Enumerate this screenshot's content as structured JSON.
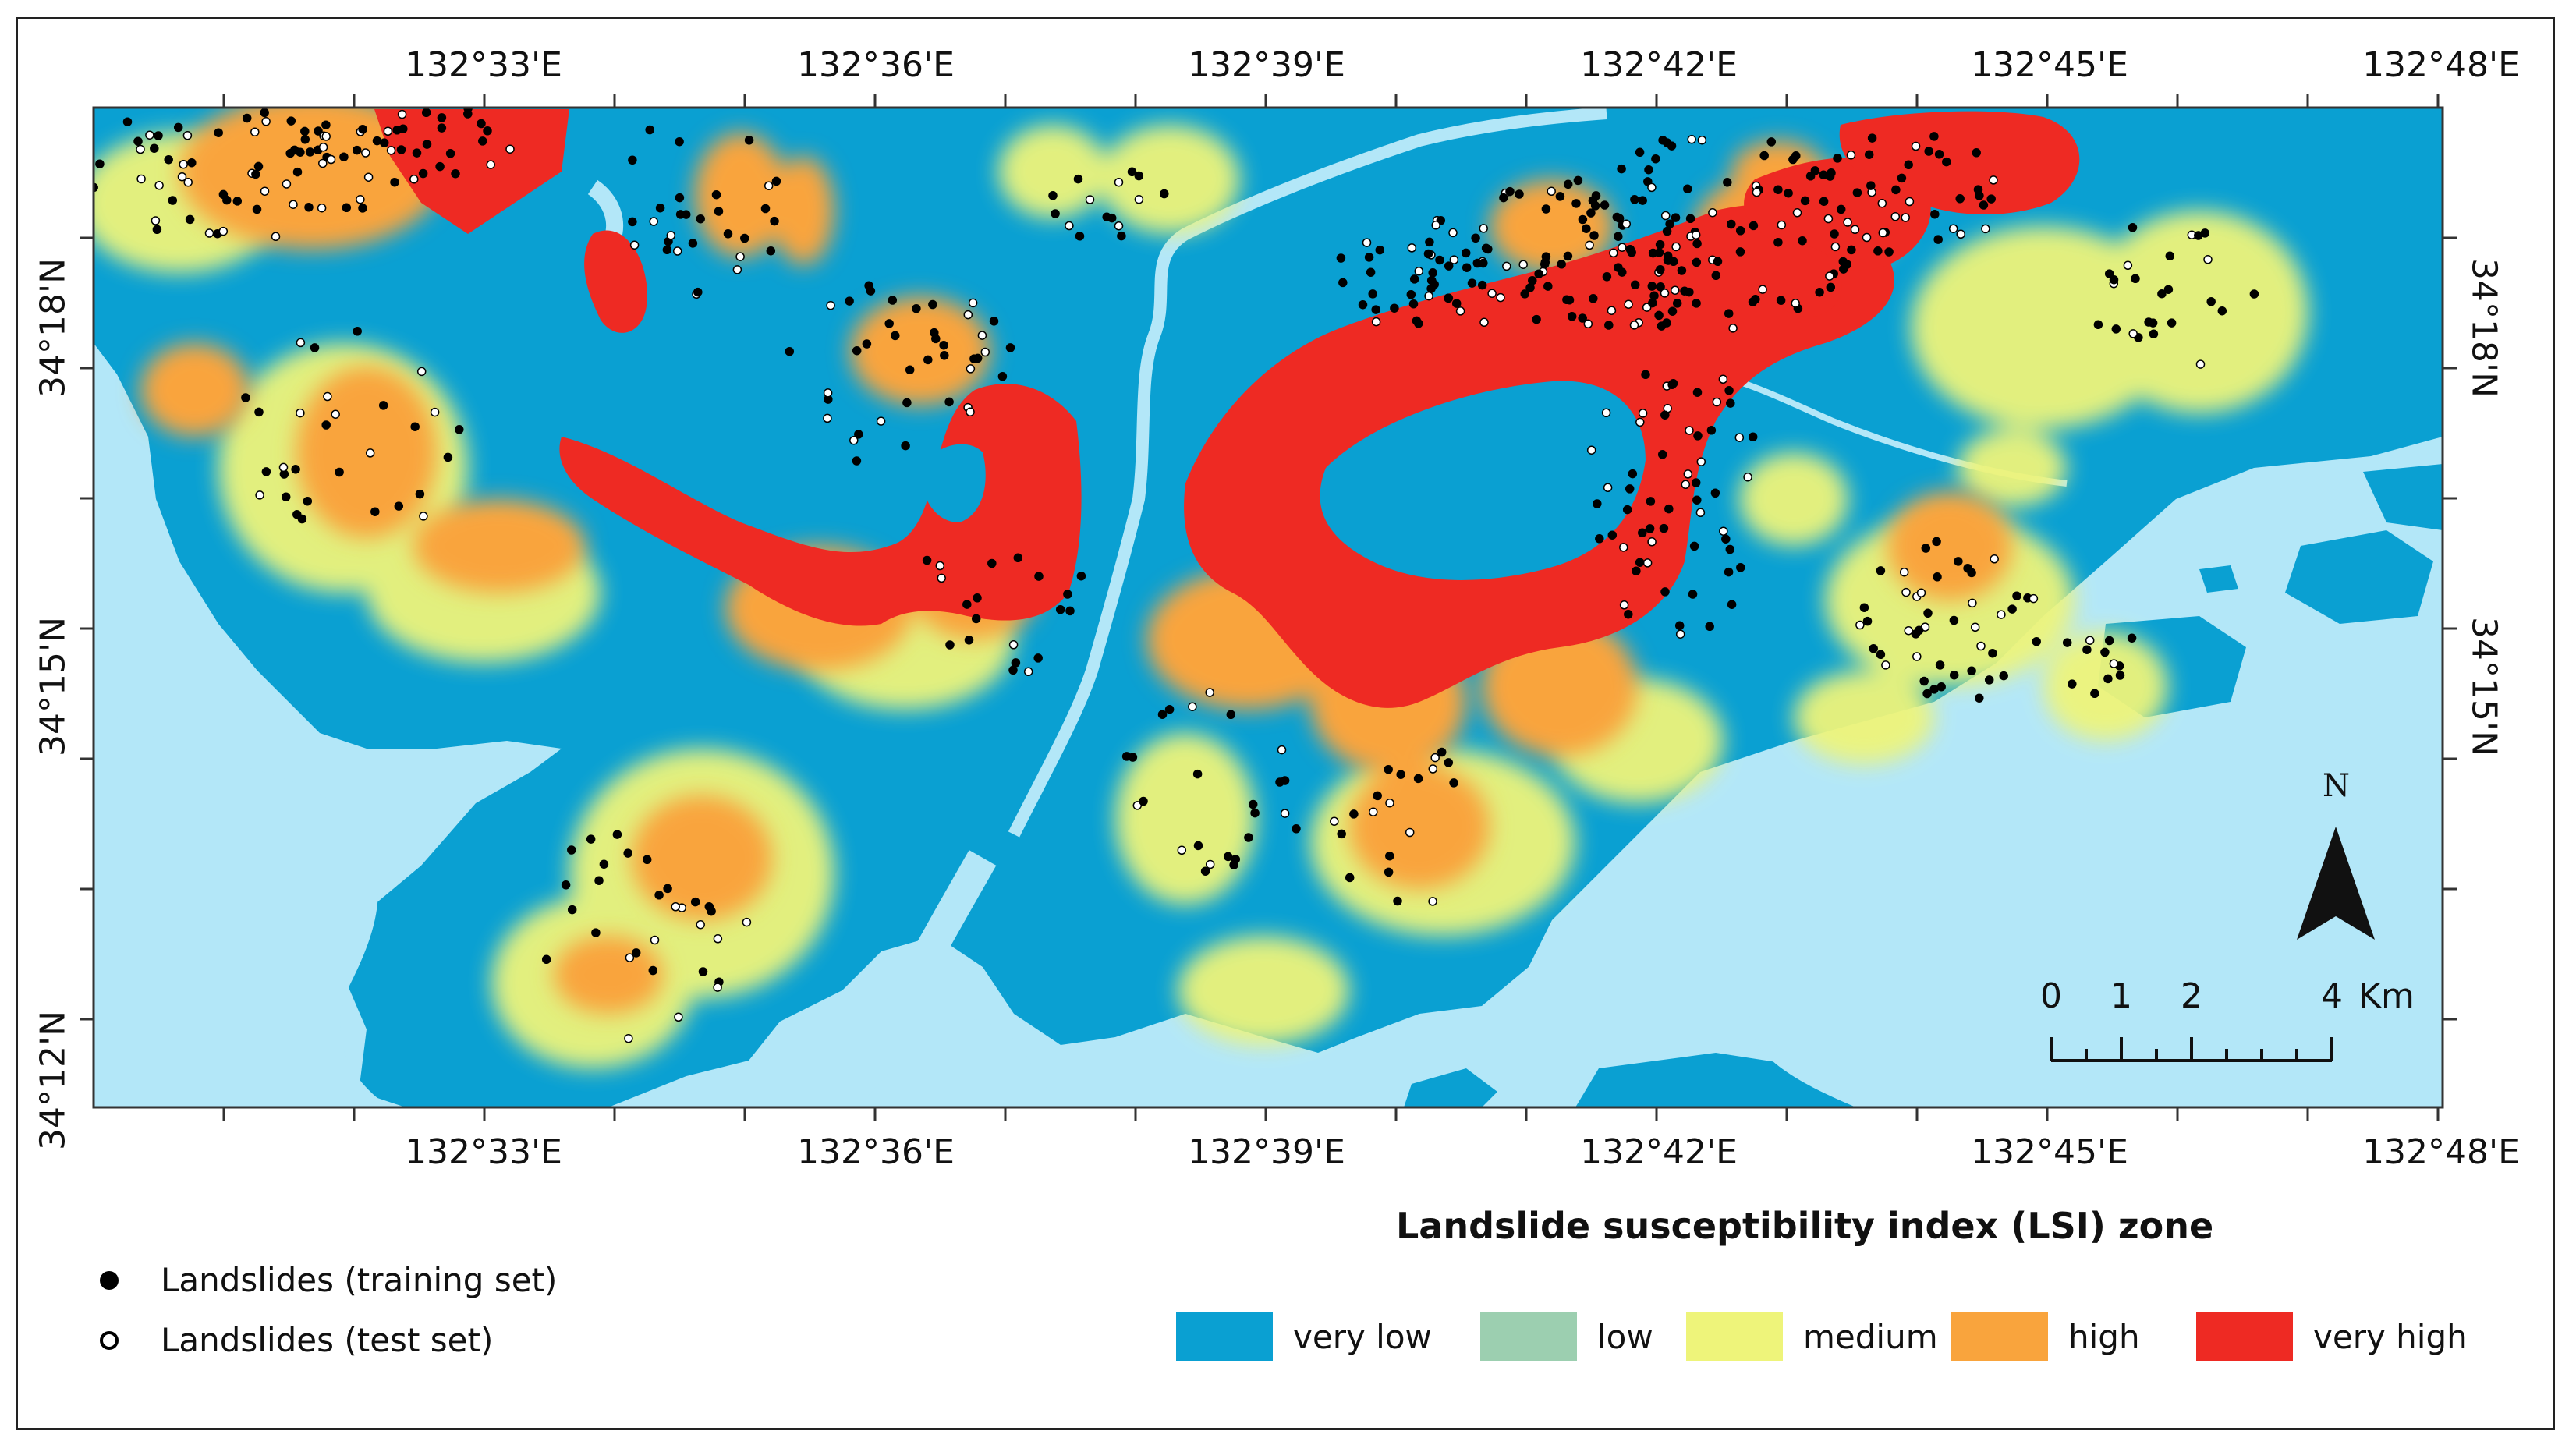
{
  "map": {
    "lon_ticks": [
      "132°33'E",
      "132°36'E",
      "132°39'E",
      "132°42'E",
      "132°45'E",
      "132°48'E"
    ],
    "lat_ticks": [
      "34°18'N",
      "34°15'N",
      "34°12'N"
    ],
    "legend_title": "Landslide susceptibility index (LSI) zone",
    "zones": [
      {
        "label": "very low",
        "color": "#0aa0d2"
      },
      {
        "label": "low",
        "color": "#9ccfb0"
      },
      {
        "label": "medium",
        "color": "#eef47a"
      },
      {
        "label": "high",
        "color": "#f9a43d"
      },
      {
        "label": "very high",
        "color": "#ee2a23"
      }
    ],
    "points_legend": [
      {
        "label": "Landslides (training set)",
        "style": "filled"
      },
      {
        "label": "Landslides (test set)",
        "style": "hollow"
      }
    ],
    "scale_bar": {
      "ticks": [
        "0",
        "1",
        "2",
        "4"
      ],
      "unit": "Km"
    },
    "north_label": "N",
    "sea_color": "#b3e7f8"
  }
}
